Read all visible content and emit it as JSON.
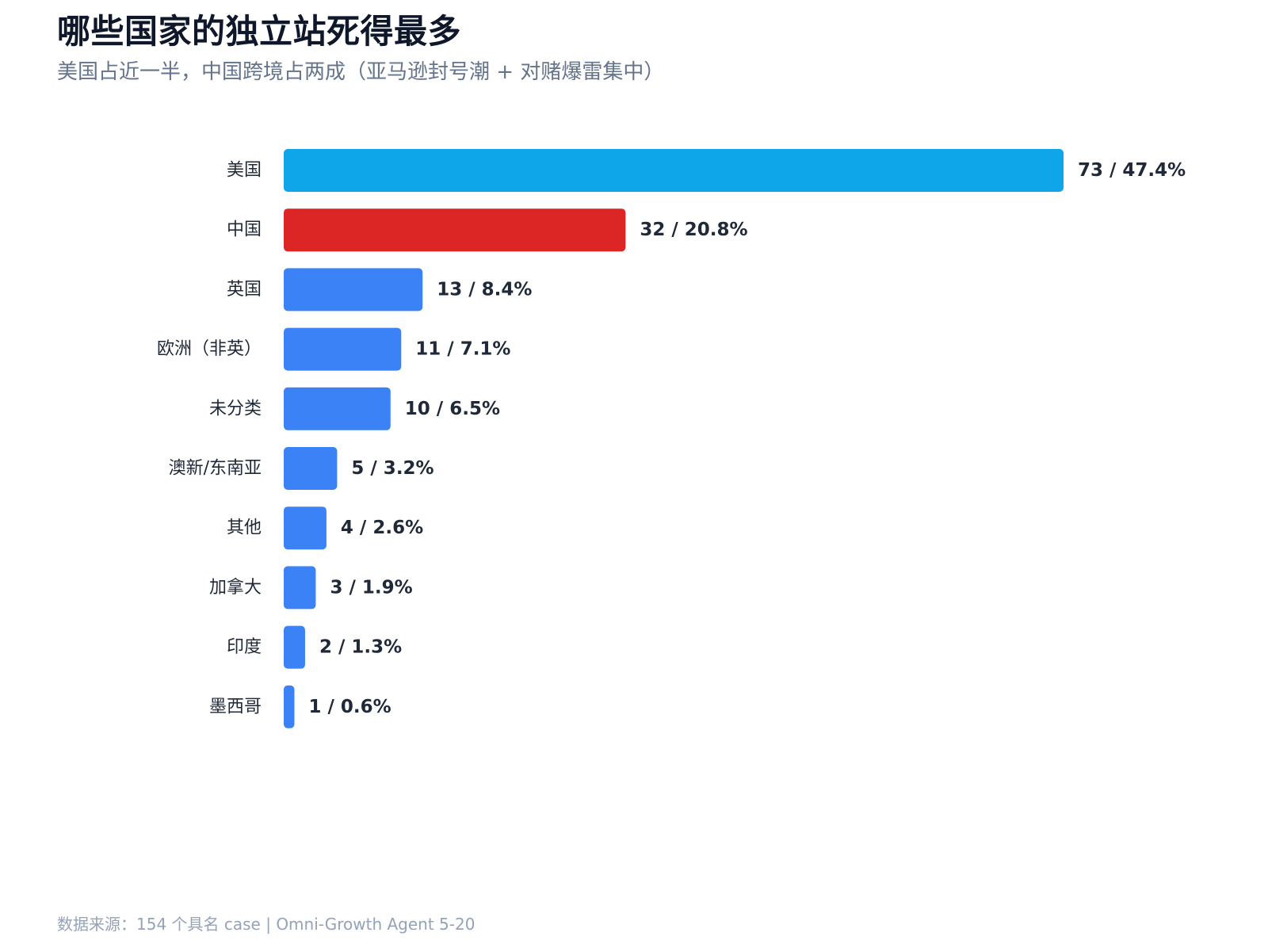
{
  "title": "哪些国家的独立站死得最多",
  "subtitle": "美国占近一半，中国跨境占两成（亚马逊封号潮 + 对赌爆雷集中）",
  "source": "数据来源：154 个具名 case | Omni-Growth Agent 5-20",
  "colors": {
    "us": "#0ea5e9",
    "china": "#dc2626",
    "default": "#3b82f6"
  },
  "chart_data": {
    "type": "bar",
    "orientation": "horizontal",
    "categories": [
      "美国",
      "中国",
      "英国",
      "欧洲（非英）",
      "未分类",
      "澳新/东南亚",
      "其他",
      "加拿大",
      "印度",
      "墨西哥"
    ],
    "values": [
      73,
      32,
      13,
      11,
      10,
      5,
      4,
      3,
      2,
      1
    ],
    "labels": [
      "73 / 47.4%",
      "32 / 20.8%",
      "13 / 8.4%",
      "11 / 7.1%",
      "10 / 6.5%",
      "5 / 3.2%",
      "4 / 2.6%",
      "3 / 1.9%",
      "2 / 1.3%",
      "1 / 0.6%"
    ],
    "bar_colors": [
      "#0ea5e9",
      "#dc2626",
      "#3b82f6",
      "#3b82f6",
      "#3b82f6",
      "#3b82f6",
      "#3b82f6",
      "#3b82f6",
      "#3b82f6",
      "#3b82f6"
    ],
    "xlim": [
      0,
      73
    ],
    "grid": false,
    "legend": "none"
  }
}
